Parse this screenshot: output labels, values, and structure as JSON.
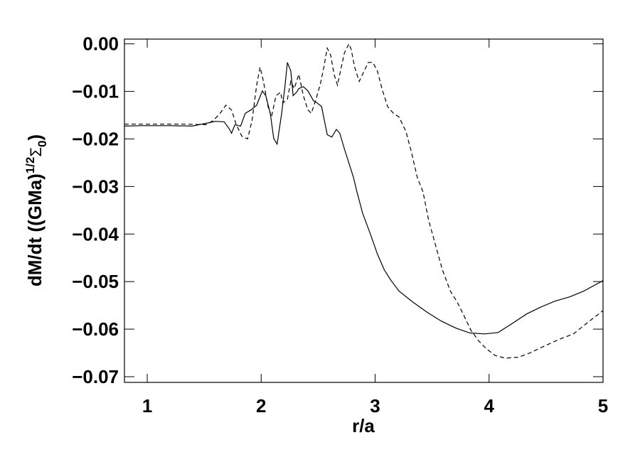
{
  "chart_data": {
    "type": "line",
    "xlabel": "r/a",
    "ylabel_parts": [
      "dM/dt ((GMa)",
      "1/2",
      "Σ",
      "0",
      ")"
    ],
    "xlim": [
      0.8,
      5
    ],
    "ylim": [
      -0.0712,
      0.001
    ],
    "xticks": [
      1,
      2,
      3,
      4,
      5
    ],
    "yticks": [
      {
        "value": 0,
        "label": "0.00"
      },
      {
        "value": -0.01,
        "label": "−0.01"
      },
      {
        "value": -0.02,
        "label": "−0.02"
      },
      {
        "value": -0.03,
        "label": "−0.03"
      },
      {
        "value": -0.04,
        "label": "−0.04"
      },
      {
        "value": -0.05,
        "label": "−0.05"
      },
      {
        "value": -0.06,
        "label": "−0.06"
      },
      {
        "value": -0.07,
        "label": "−0.07"
      }
    ],
    "series": [
      {
        "color": "#000000",
        "line_style": "solid",
        "x": [
          0.8,
          0.956,
          1.206,
          1.394,
          1.519,
          1.6,
          1.675,
          1.72,
          1.74,
          1.77,
          1.82,
          1.86,
          1.91,
          1.96,
          2.01,
          2.04,
          2.08,
          2.11,
          2.14,
          2.18,
          2.21,
          2.23,
          2.26,
          2.28,
          2.31,
          2.33,
          2.37,
          2.41,
          2.46,
          2.49,
          2.53,
          2.58,
          2.62,
          2.66,
          2.69,
          2.73,
          2.77,
          2.81,
          2.84,
          2.89,
          2.96,
          3.02,
          3.08,
          3.14,
          3.21,
          3.33,
          3.46,
          3.58,
          3.71,
          3.83,
          3.96,
          4.08,
          4.21,
          4.33,
          4.46,
          4.58,
          4.71,
          4.83,
          5.0
        ],
        "values": [
          -0.0173,
          -0.0172,
          -0.0172,
          -0.0173,
          -0.0167,
          -0.0163,
          -0.0164,
          -0.0179,
          -0.0188,
          -0.017,
          -0.0173,
          -0.0146,
          -0.0139,
          -0.0129,
          -0.0099,
          -0.0109,
          -0.0146,
          -0.0199,
          -0.0211,
          -0.0146,
          -0.0087,
          -0.0039,
          -0.0057,
          -0.0109,
          -0.0102,
          -0.0094,
          -0.009,
          -0.0099,
          -0.012,
          -0.0124,
          -0.0132,
          -0.0191,
          -0.0196,
          -0.018,
          -0.0188,
          -0.0221,
          -0.0251,
          -0.0281,
          -0.0311,
          -0.0356,
          -0.0401,
          -0.0442,
          -0.0475,
          -0.0498,
          -0.052,
          -0.0543,
          -0.0565,
          -0.0583,
          -0.0598,
          -0.0608,
          -0.061,
          -0.0607,
          -0.0587,
          -0.0568,
          -0.0553,
          -0.0541,
          -0.0532,
          -0.052,
          -0.0498
        ]
      },
      {
        "color": "#000000",
        "line_style": "dashed",
        "x": [
          0.8,
          1.08,
          1.33,
          1.52,
          1.58,
          1.64,
          1.69,
          1.74,
          1.78,
          1.83,
          1.88,
          1.92,
          1.96,
          1.99,
          2.02,
          2.06,
          2.09,
          2.13,
          2.17,
          2.19,
          2.23,
          2.26,
          2.29,
          2.33,
          2.37,
          2.41,
          2.44,
          2.48,
          2.52,
          2.55,
          2.58,
          2.61,
          2.64,
          2.67,
          2.69,
          2.73,
          2.77,
          2.79,
          2.82,
          2.86,
          2.89,
          2.94,
          2.98,
          3.02,
          3.06,
          3.11,
          3.16,
          3.21,
          3.27,
          3.32,
          3.37,
          3.42,
          3.47,
          3.53,
          3.59,
          3.66,
          3.72,
          3.78,
          3.84,
          3.91,
          3.97,
          4.05,
          4.14,
          4.26,
          4.36,
          4.49,
          4.61,
          4.74,
          4.86,
          5.0
        ],
        "values": [
          -0.0169,
          -0.0169,
          -0.0169,
          -0.017,
          -0.0161,
          -0.0146,
          -0.0129,
          -0.0139,
          -0.0169,
          -0.0194,
          -0.02,
          -0.0161,
          -0.0087,
          -0.0049,
          -0.0079,
          -0.0132,
          -0.0154,
          -0.0109,
          -0.0102,
          -0.0124,
          -0.0117,
          -0.0079,
          -0.0094,
          -0.0064,
          -0.0109,
          -0.0139,
          -0.0146,
          -0.0117,
          -0.0084,
          -0.0049,
          -0.0009,
          -0.0024,
          -0.0064,
          -0.0087,
          -0.0064,
          -0.0019,
          0,
          -0.0012,
          -0.0049,
          -0.0079,
          -0.0064,
          -0.0039,
          -0.0039,
          -0.0057,
          -0.0094,
          -0.0132,
          -0.0146,
          -0.0154,
          -0.0184,
          -0.0229,
          -0.0281,
          -0.0311,
          -0.0371,
          -0.0423,
          -0.0475,
          -0.052,
          -0.0543,
          -0.0572,
          -0.0602,
          -0.0625,
          -0.064,
          -0.0655,
          -0.0661,
          -0.0659,
          -0.065,
          -0.0635,
          -0.0622,
          -0.061,
          -0.0587,
          -0.0561
        ]
      }
    ]
  }
}
